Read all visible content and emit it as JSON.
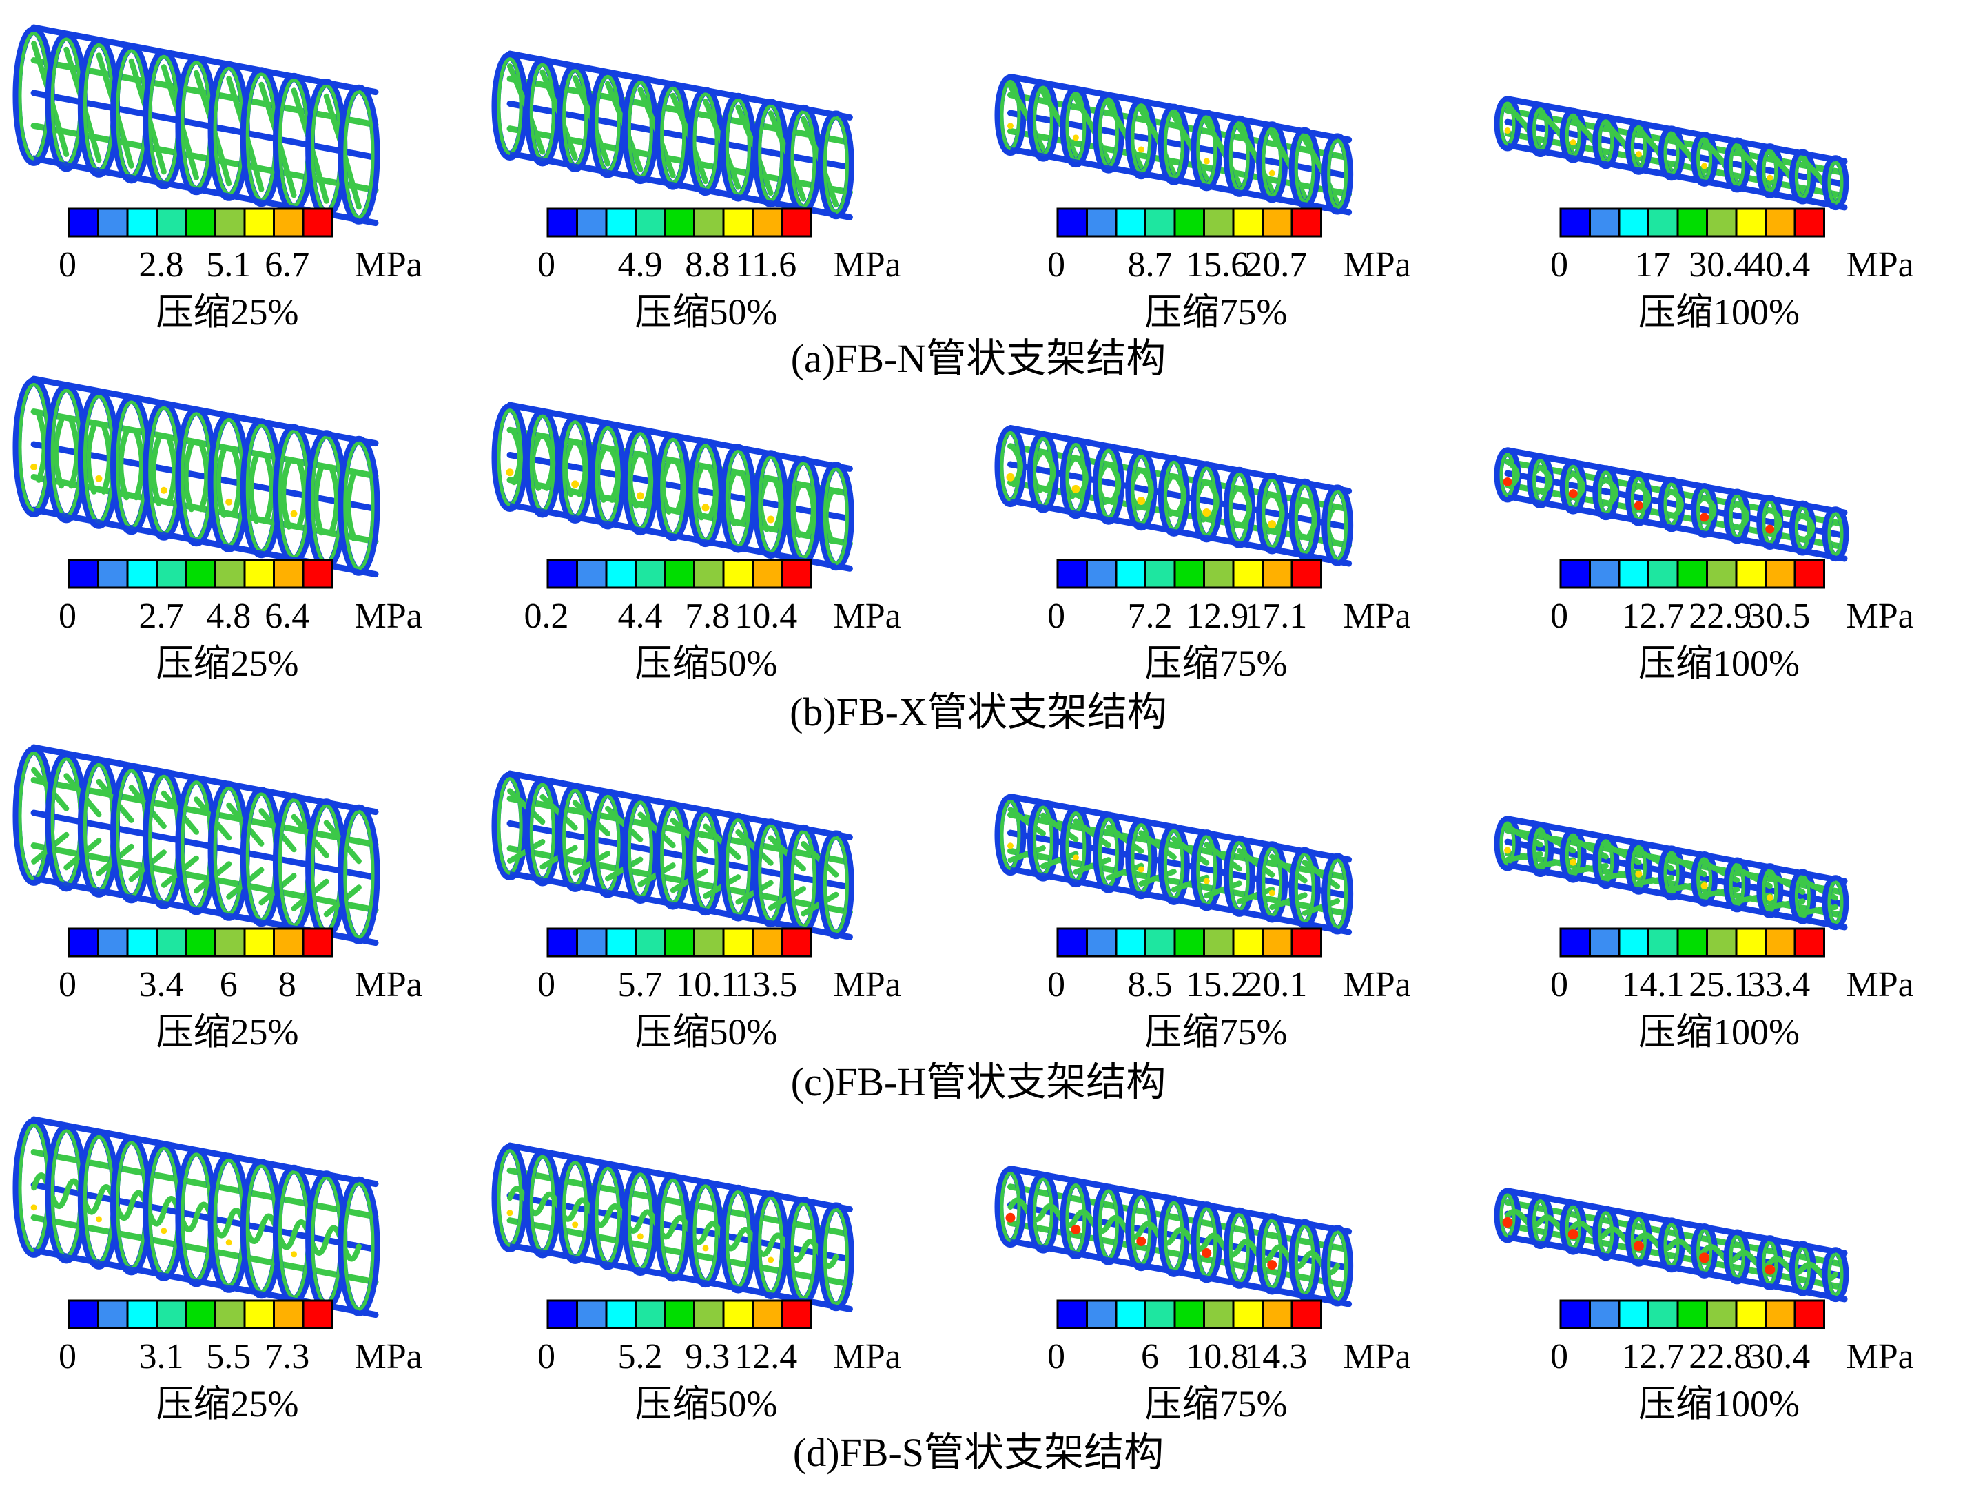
{
  "colormap": [
    "#0000ff",
    "#3b8df2",
    "#00ffff",
    "#1ee6a0",
    "#00dd00",
    "#8ccc3c",
    "#ffff00",
    "#ffb000",
    "#ff0000"
  ],
  "stent_colors": {
    "frame": "#1440e0",
    "strut": "#3cc848",
    "accent": "#ffd800",
    "hot": "#ff3000"
  },
  "rows": [
    {
      "caption": "(a)FB-N管状支架结构",
      "design": "N",
      "panels": [
        {
          "ticks": [
            "0",
            "2.8",
            "5.1",
            "6.7"
          ],
          "unit": "MPa",
          "compression": "压缩25%",
          "flatten": 0.0,
          "hot": 0.0
        },
        {
          "ticks": [
            "0",
            "4.9",
            "8.8",
            "11.6"
          ],
          "unit": "MPa",
          "compression": "压缩50%",
          "flatten": 0.33,
          "hot": 0.0
        },
        {
          "ticks": [
            "0",
            "8.7",
            "15.6",
            "20.7"
          ],
          "unit": "MPa",
          "compression": "压缩75%",
          "flatten": 0.62,
          "hot": 0.05
        },
        {
          "ticks": [
            "0",
            "17",
            "30.4",
            "40.4"
          ],
          "unit": "MPa",
          "compression": "压缩100%",
          "flatten": 0.9,
          "hot": 0.05
        }
      ]
    },
    {
      "caption": "(b)FB-X管状支架结构",
      "design": "X",
      "panels": [
        {
          "ticks": [
            "0",
            "2.7",
            "4.8",
            "6.4"
          ],
          "unit": "MPa",
          "compression": "压缩25%",
          "flatten": 0.0,
          "hot": 0.1
        },
        {
          "ticks": [
            "0.2",
            "4.4",
            "7.8",
            "10.4"
          ],
          "unit": "MPa",
          "compression": "压缩50%",
          "flatten": 0.33,
          "hot": 0.15
        },
        {
          "ticks": [
            "0",
            "7.2",
            "12.9",
            "17.1"
          ],
          "unit": "MPa",
          "compression": "压缩75%",
          "flatten": 0.62,
          "hot": 0.2
        },
        {
          "ticks": [
            "0",
            "12.7",
            "22.9",
            "30.5"
          ],
          "unit": "MPa",
          "compression": "压缩100%",
          "flatten": 0.9,
          "hot": 0.25
        }
      ]
    },
    {
      "caption": "(c)FB-H管状支架结构",
      "design": "H",
      "panels": [
        {
          "ticks": [
            "0",
            "3.4",
            "6",
            "8"
          ],
          "unit": "MPa",
          "compression": "压缩25%",
          "flatten": 0.0,
          "hot": 0.0
        },
        {
          "ticks": [
            "0",
            "5.7",
            "10.1",
            "13.5"
          ],
          "unit": "MPa",
          "compression": "压缩50%",
          "flatten": 0.33,
          "hot": 0.0
        },
        {
          "ticks": [
            "0",
            "8.5",
            "15.2",
            "20.1"
          ],
          "unit": "MPa",
          "compression": "压缩75%",
          "flatten": 0.62,
          "hot": 0.05
        },
        {
          "ticks": [
            "0",
            "14.1",
            "25.1",
            "33.4"
          ],
          "unit": "MPa",
          "compression": "压缩100%",
          "flatten": 0.9,
          "hot": 0.1
        }
      ]
    },
    {
      "caption": "(d)FB-S管状支架结构",
      "design": "S",
      "panels": [
        {
          "ticks": [
            "0",
            "3.1",
            "5.5",
            "7.3"
          ],
          "unit": "MPa",
          "compression": "压缩25%",
          "flatten": 0.0,
          "hot": 0.05
        },
        {
          "ticks": [
            "0",
            "5.2",
            "9.3",
            "12.4"
          ],
          "unit": "MPa",
          "compression": "压缩50%",
          "flatten": 0.33,
          "hot": 0.05
        },
        {
          "ticks": [
            "0",
            "6",
            "10.8",
            "14.3"
          ],
          "unit": "MPa",
          "compression": "压缩75%",
          "flatten": 0.62,
          "hot": 0.3
        },
        {
          "ticks": [
            "0",
            "12.7",
            "22.8",
            "30.4"
          ],
          "unit": "MPa",
          "compression": "压缩100%",
          "flatten": 0.9,
          "hot": 0.35
        }
      ]
    }
  ]
}
